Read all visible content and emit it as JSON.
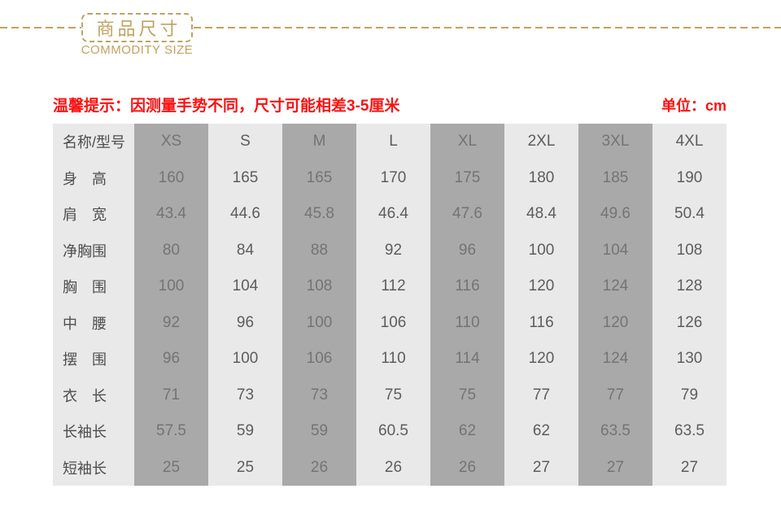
{
  "header": {
    "title": "商品尺寸",
    "subtitle": "COMMODITY SIZE"
  },
  "notice": {
    "tip": "温馨提示：因测量手势不同，尺寸可能相差3-5厘米",
    "unit": "单位：cm"
  },
  "size_table": {
    "header_row": [
      "名称/型号",
      "XS",
      "S",
      "M",
      "L",
      "XL",
      "2XL",
      "3XL",
      "4XL"
    ],
    "rows": [
      {
        "label": "身　高",
        "values": [
          "160",
          "165",
          "165",
          "170",
          "175",
          "180",
          "185",
          "190"
        ]
      },
      {
        "label": "肩　宽",
        "values": [
          "43.4",
          "44.6",
          "45.8",
          "46.4",
          "47.6",
          "48.4",
          "49.6",
          "50.4"
        ]
      },
      {
        "label": "净胸围",
        "values": [
          "80",
          "84",
          "88",
          "92",
          "96",
          "100",
          "104",
          "108"
        ]
      },
      {
        "label": "胸　围",
        "values": [
          "100",
          "104",
          "108",
          "112",
          "116",
          "120",
          "124",
          "128"
        ]
      },
      {
        "label": "中　腰",
        "values": [
          "92",
          "96",
          "100",
          "106",
          "110",
          "116",
          "120",
          "126"
        ]
      },
      {
        "label": "摆　围",
        "values": [
          "96",
          "100",
          "106",
          "110",
          "114",
          "120",
          "124",
          "130"
        ]
      },
      {
        "label": "衣　长",
        "values": [
          "71",
          "73",
          "73",
          "75",
          "75",
          "77",
          "77",
          "79"
        ]
      },
      {
        "label": "长袖长",
        "values": [
          "57.5",
          "59",
          "59",
          "60.5",
          "62",
          "62",
          "63.5",
          "63.5"
        ]
      },
      {
        "label": "短袖长",
        "values": [
          "25",
          "25",
          "26",
          "26",
          "26",
          "27",
          "27",
          "27"
        ]
      }
    ],
    "shaded_column_indexes": [
      1,
      3,
      5,
      7
    ],
    "colors": {
      "accent_gold": "#C2A161",
      "notice_red": "#FB1111",
      "cell_light": "#E9E9E9",
      "cell_dark": "#A9A9A9"
    }
  }
}
